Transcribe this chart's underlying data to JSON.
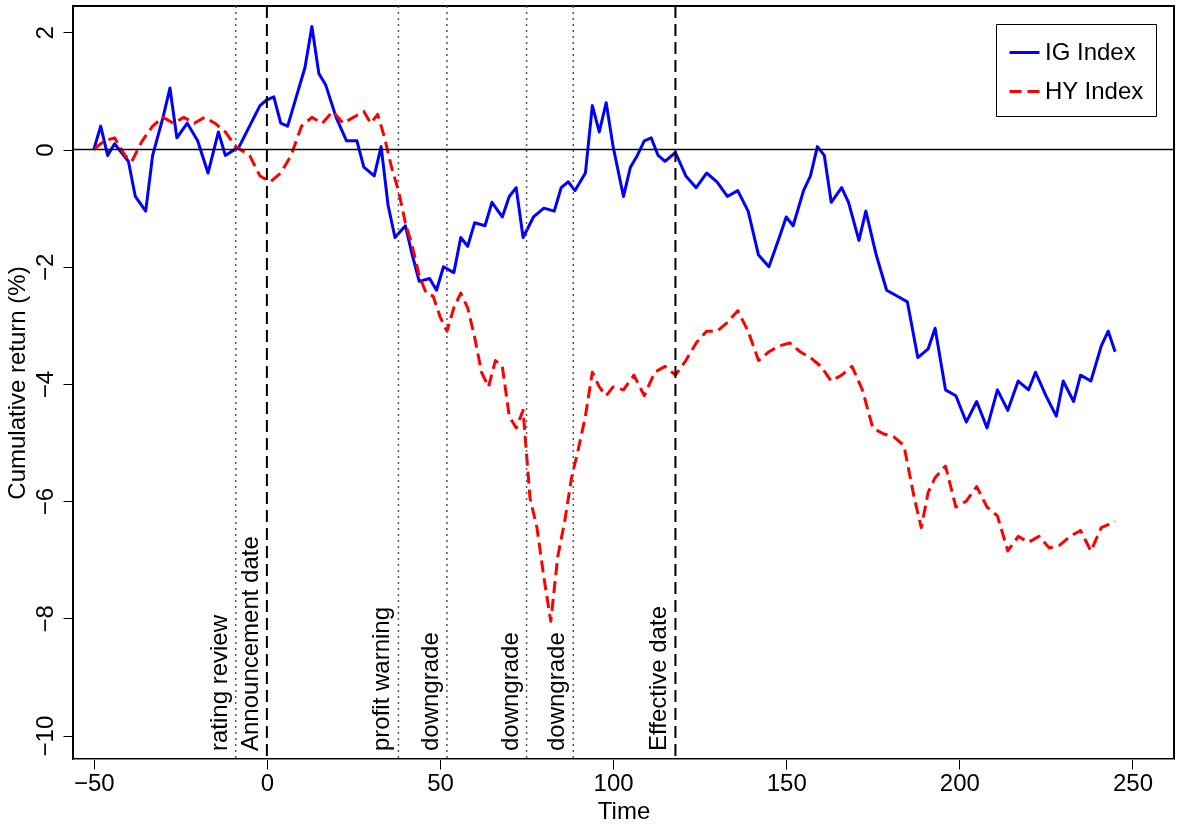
{
  "chart_data": {
    "type": "line",
    "xlabel": "Time",
    "ylabel": "Cumulative return (%)",
    "xlim": [
      -56,
      262
    ],
    "ylim": [
      -10.4,
      2.45
    ],
    "xticks": [
      -50,
      0,
      50,
      100,
      150,
      200,
      250
    ],
    "yticks": [
      -10,
      -8,
      -6,
      -4,
      -2,
      0,
      2
    ],
    "grid": false,
    "legend": "top right",
    "series": [
      {
        "name": "IG Index",
        "color": "#0000ff",
        "line_style": "solid",
        "x": [
          -50,
          -48,
          -46,
          -44,
          -40,
          -38,
          -35,
          -33,
          -30,
          -28,
          -26,
          -23,
          -20,
          -17,
          -14,
          -12,
          -8,
          -5,
          -2,
          0,
          2,
          4,
          6,
          8,
          11,
          13,
          15,
          17,
          20,
          23,
          26,
          28,
          31,
          33,
          35,
          37,
          40,
          42,
          44,
          47,
          49,
          51,
          54,
          56,
          58,
          60,
          63,
          65,
          68,
          70,
          72,
          74,
          77,
          80,
          83,
          85,
          87,
          89,
          92,
          94,
          96,
          98,
          100,
          103,
          105,
          107,
          109,
          111,
          113,
          115,
          118,
          121,
          124,
          127,
          130,
          133,
          136,
          139,
          142,
          145,
          148,
          150,
          152,
          155,
          157,
          159,
          161,
          163,
          166,
          168,
          171,
          173,
          176,
          179,
          182,
          185,
          188,
          191,
          193,
          196,
          199,
          202,
          205,
          208,
          211,
          214,
          217,
          220,
          222,
          225,
          228,
          230,
          233,
          235,
          238,
          241,
          243,
          245
        ],
        "values": [
          0,
          0.4,
          -0.1,
          0.1,
          -0.2,
          -0.8,
          -1.05,
          -0.1,
          0.55,
          1.05,
          0.2,
          0.45,
          0.15,
          -0.4,
          0.3,
          -0.1,
          0.05,
          0.4,
          0.75,
          0.85,
          0.9,
          0.45,
          0.4,
          0.8,
          1.4,
          2.1,
          1.3,
          1.1,
          0.55,
          0.15,
          0.15,
          -0.3,
          -0.45,
          0.05,
          -0.95,
          -1.5,
          -1.3,
          -1.8,
          -2.25,
          -2.2,
          -2.4,
          -2.0,
          -2.1,
          -1.5,
          -1.65,
          -1.25,
          -1.3,
          -0.9,
          -1.15,
          -0.8,
          -0.65,
          -1.5,
          -1.15,
          -1.0,
          -1.05,
          -0.65,
          -0.55,
          -0.7,
          -0.4,
          0.75,
          0.3,
          0.8,
          0.05,
          -0.8,
          -0.3,
          -0.1,
          0.15,
          0.2,
          -0.1,
          -0.2,
          -0.05,
          -0.45,
          -0.65,
          -0.4,
          -0.55,
          -0.8,
          -0.7,
          -1.05,
          -1.8,
          -2.0,
          -1.5,
          -1.15,
          -1.3,
          -0.7,
          -0.45,
          0.05,
          -0.1,
          -0.9,
          -0.65,
          -0.9,
          -1.55,
          -1.05,
          -1.8,
          -2.4,
          -2.5,
          -2.6,
          -3.55,
          -3.4,
          -3.05,
          -4.1,
          -4.2,
          -4.65,
          -4.3,
          -4.75,
          -4.1,
          -4.45,
          -3.95,
          -4.1,
          -3.8,
          -4.2,
          -4.55,
          -3.95,
          -4.3,
          -3.85,
          -3.95,
          -3.35,
          -3.1,
          -3.45
        ]
      },
      {
        "name": "HY Index",
        "color": "#ff0000",
        "line_style": "dashed",
        "x": [
          -50,
          -47,
          -44,
          -41,
          -39,
          -36,
          -33,
          -30,
          -27,
          -24,
          -21,
          -18,
          -15,
          -12,
          -9,
          -5,
          -2,
          1,
          4,
          7,
          10,
          13,
          16,
          19,
          22,
          25,
          28,
          30,
          32,
          34,
          36,
          38,
          40,
          42,
          44,
          46,
          48,
          50,
          52,
          54,
          56,
          58,
          60,
          62,
          64,
          66,
          68,
          70,
          72,
          74,
          76,
          78,
          80,
          82,
          84,
          86,
          88,
          90,
          92,
          94,
          96,
          98,
          100,
          103,
          106,
          109,
          112,
          115,
          118,
          121,
          124,
          127,
          130,
          133,
          136,
          139,
          142,
          145,
          148,
          151,
          154,
          157,
          160,
          163,
          166,
          169,
          172,
          175,
          178,
          181,
          184,
          187,
          189,
          191,
          193,
          196,
          199,
          202,
          205,
          208,
          211,
          214,
          217,
          220,
          223,
          226,
          229,
          232,
          235,
          238,
          241,
          245
        ],
        "values": [
          0,
          0.15,
          0.2,
          -0.1,
          -0.2,
          0.15,
          0.4,
          0.55,
          0.45,
          0.55,
          0.45,
          0.55,
          0.45,
          0.3,
          0.05,
          -0.1,
          -0.45,
          -0.55,
          -0.4,
          -0.1,
          0.4,
          0.55,
          0.45,
          0.65,
          0.45,
          0.55,
          0.65,
          0.45,
          0.6,
          0.2,
          -0.3,
          -0.7,
          -1.25,
          -1.65,
          -2.15,
          -2.45,
          -2.5,
          -2.85,
          -3.1,
          -2.7,
          -2.45,
          -2.7,
          -3.2,
          -3.8,
          -4.05,
          -3.6,
          -3.7,
          -4.55,
          -4.75,
          -4.45,
          -5.95,
          -6.45,
          -7.3,
          -8.05,
          -6.95,
          -6.35,
          -5.6,
          -5.1,
          -4.55,
          -3.8,
          -4.05,
          -4.2,
          -4.05,
          -4.1,
          -3.85,
          -4.2,
          -3.8,
          -3.7,
          -3.85,
          -3.6,
          -3.3,
          -3.1,
          -3.1,
          -2.95,
          -2.75,
          -3.1,
          -3.6,
          -3.45,
          -3.35,
          -3.3,
          -3.45,
          -3.55,
          -3.7,
          -3.95,
          -3.85,
          -3.7,
          -4.1,
          -4.75,
          -4.85,
          -4.9,
          -5.05,
          -5.95,
          -6.45,
          -5.85,
          -5.6,
          -5.4,
          -6.1,
          -6.0,
          -5.75,
          -6.1,
          -6.25,
          -6.85,
          -6.6,
          -6.7,
          -6.6,
          -6.8,
          -6.75,
          -6.6,
          -6.5,
          -6.85,
          -6.45,
          -6.35
        ]
      }
    ],
    "ref_lines": [
      {
        "axis": "y",
        "value": 0,
        "line_style": "solid",
        "color": "#000000"
      },
      {
        "axis": "x",
        "value": -9,
        "label": "rating review",
        "line_style": "dotted",
        "color": "#555555"
      },
      {
        "axis": "x",
        "value": 0,
        "label": "Announcement date",
        "line_style": "dashed",
        "color": "#000000"
      },
      {
        "axis": "x",
        "value": 38,
        "label": "profit warning",
        "line_style": "dotted",
        "color": "#555555"
      },
      {
        "axis": "x",
        "value": 52,
        "label": "downgrade",
        "line_style": "dotted",
        "color": "#555555"
      },
      {
        "axis": "x",
        "value": 75,
        "label": "downgrade",
        "line_style": "dotted",
        "color": "#555555"
      },
      {
        "axis": "x",
        "value": 88.5,
        "label": "downgrade",
        "line_style": "dotted",
        "color": "#555555"
      },
      {
        "axis": "x",
        "value": 118,
        "label": "Effective date",
        "line_style": "dashed",
        "color": "#000000"
      }
    ]
  }
}
